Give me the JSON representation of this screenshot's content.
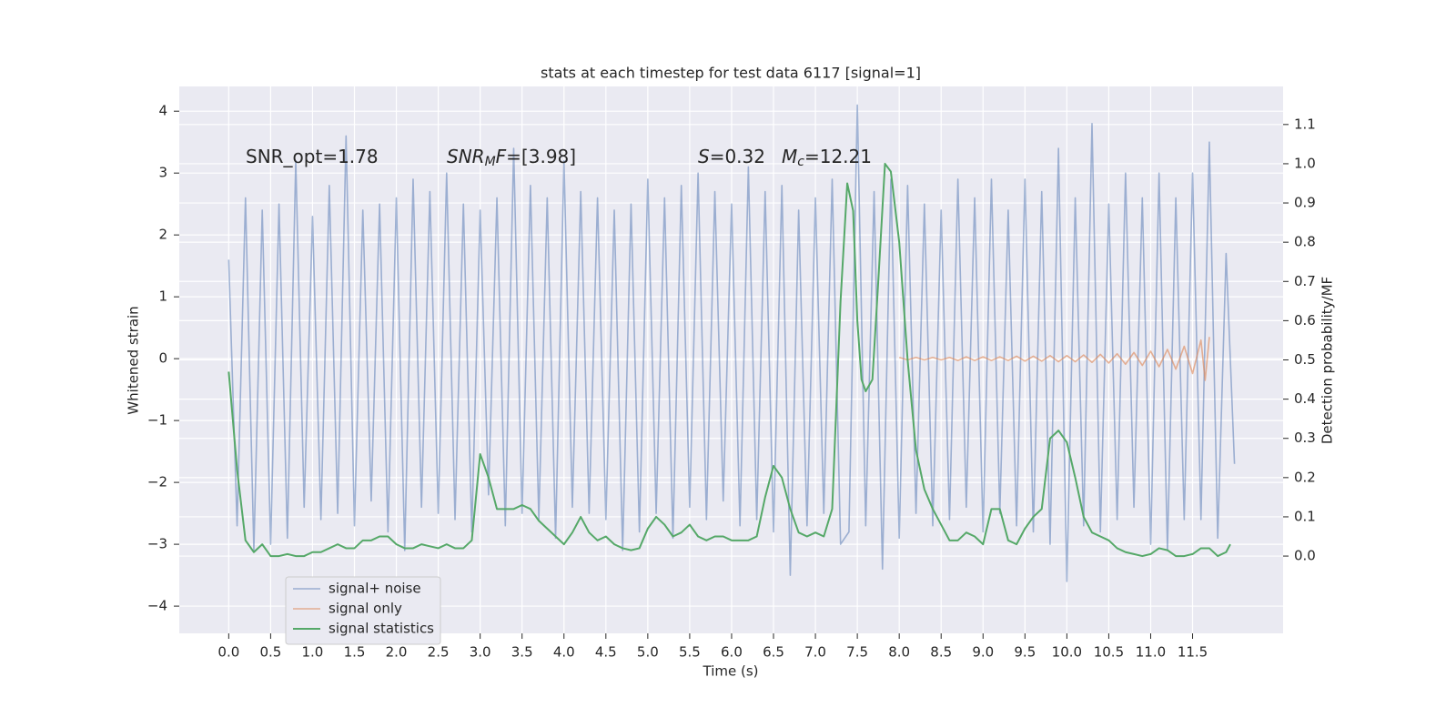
{
  "chart_data": {
    "type": "line",
    "title": "stats at each timestep for test data 6117 [signal=1]",
    "xlabel": "Time (s)",
    "ylabel": "Whitened strain",
    "y2label": "Detection probability/MF",
    "xlim": [
      -0.59,
      12.58
    ],
    "ylim": [
      -4.44,
      4.4
    ],
    "y2lim": [
      -0.197,
      1.197
    ],
    "xticks": [
      {
        "value": 0,
        "label": "0.0"
      },
      {
        "value": 0.5,
        "label": "0.5"
      },
      {
        "value": 1,
        "label": "1.0"
      },
      {
        "value": 1.5,
        "label": "1.5"
      },
      {
        "value": 2,
        "label": "2.0"
      },
      {
        "value": 2.5,
        "label": "2.5"
      },
      {
        "value": 3,
        "label": "3.0"
      },
      {
        "value": 3.5,
        "label": "3.5"
      },
      {
        "value": 4,
        "label": "4.0"
      },
      {
        "value": 4.5,
        "label": "4.5"
      },
      {
        "value": 5,
        "label": "5.0"
      },
      {
        "value": 5.5,
        "label": "5.5"
      },
      {
        "value": 6,
        "label": "6.0"
      },
      {
        "value": 6.5,
        "label": "6.5"
      },
      {
        "value": 7,
        "label": "7.0"
      },
      {
        "value": 7.5,
        "label": "7.5"
      },
      {
        "value": 8,
        "label": "8.0"
      },
      {
        "value": 8.5,
        "label": "8.5"
      },
      {
        "value": 9,
        "label": "9.0"
      },
      {
        "value": 9.5,
        "label": "9.5"
      },
      {
        "value": 10,
        "label": "10.0"
      },
      {
        "value": 10.5,
        "label": "10.5"
      },
      {
        "value": 11,
        "label": "11.0"
      },
      {
        "value": 11.5,
        "label": "11.5"
      }
    ],
    "yticks": [
      {
        "value": -4,
        "label": "−4"
      },
      {
        "value": -3,
        "label": "−3"
      },
      {
        "value": -2,
        "label": "−2"
      },
      {
        "value": -1,
        "label": "−1"
      },
      0,
      1,
      2,
      3,
      4
    ],
    "y2ticks": [
      {
        "value": 0,
        "label": "0.0"
      },
      {
        "value": 0.1,
        "label": "0.1"
      },
      {
        "value": 0.2,
        "label": "0.2"
      },
      {
        "value": 0.3,
        "label": "0.3"
      },
      {
        "value": 0.4,
        "label": "0.4"
      },
      {
        "value": 0.5,
        "label": "0.5"
      },
      {
        "value": 0.6,
        "label": "0.6"
      },
      {
        "value": 0.7,
        "label": "0.7"
      },
      {
        "value": 0.8,
        "label": "0.8"
      },
      {
        "value": 0.9,
        "label": "0.9"
      },
      {
        "value": 1.0,
        "label": "1.0"
      },
      {
        "value": 1.1,
        "label": "1.1"
      }
    ],
    "grid": true,
    "legend": "lower left",
    "series": [
      {
        "name": "signal+ noise",
        "color": "#4c72b0",
        "x": [
          0,
          0.1,
          0.2,
          0.3,
          0.4,
          0.5,
          0.6,
          0.7,
          0.8,
          0.9,
          1,
          1.1,
          1.2,
          1.3,
          1.4,
          1.5,
          1.6,
          1.7,
          1.8,
          1.9,
          2,
          2.1,
          2.2,
          2.3,
          2.4,
          2.5,
          2.6,
          2.7,
          2.8,
          2.9,
          3,
          3.1,
          3.2,
          3.3,
          3.4,
          3.5,
          3.6,
          3.7,
          3.8,
          3.9,
          4,
          4.1,
          4.2,
          4.3,
          4.4,
          4.5,
          4.6,
          4.7,
          4.8,
          4.9,
          5,
          5.1,
          5.2,
          5.3,
          5.4,
          5.5,
          5.6,
          5.7,
          5.8,
          5.9,
          6,
          6.1,
          6.2,
          6.3,
          6.4,
          6.5,
          6.6,
          6.7,
          6.8,
          6.9,
          7,
          7.1,
          7.2,
          7.3,
          7.4,
          7.5,
          7.6,
          7.7,
          7.8,
          7.9,
          8,
          8.1,
          8.2,
          8.3,
          8.4,
          8.5,
          8.6,
          8.7,
          8.8,
          8.9,
          9,
          9.1,
          9.2,
          9.3,
          9.4,
          9.5,
          9.6,
          9.7,
          9.8,
          9.9,
          10,
          10.1,
          10.2,
          10.3,
          10.4,
          10.5,
          10.6,
          10.7,
          10.8,
          10.9,
          11,
          11.1,
          11.2,
          11.3,
          11.4,
          11.5,
          11.6,
          11.7,
          11.8,
          11.9,
          12
        ],
        "values": [
          1.6,
          -2.7,
          2.6,
          -3.1,
          2.4,
          -3.0,
          2.5,
          -2.9,
          3.2,
          -2.4,
          2.3,
          -2.6,
          2.8,
          -2.5,
          3.6,
          -2.7,
          2.4,
          -2.3,
          2.5,
          -2.8,
          2.6,
          -3.1,
          2.9,
          -2.4,
          2.7,
          -2.5,
          3.0,
          -2.6,
          2.5,
          -2.8,
          2.4,
          -2.2,
          2.6,
          -2.7,
          3.4,
          -2.5,
          2.8,
          -2.6,
          2.6,
          -2.9,
          3.2,
          -2.4,
          2.7,
          -2.5,
          2.6,
          -2.6,
          2.4,
          -3.1,
          2.5,
          -2.8,
          2.9,
          -2.5,
          2.6,
          -2.9,
          2.8,
          -2.4,
          3.0,
          -2.6,
          2.7,
          -2.3,
          2.5,
          -2.7,
          3.1,
          -2.6,
          2.7,
          -2.8,
          2.8,
          -3.5,
          2.4,
          -2.7,
          2.6,
          -2.5,
          2.9,
          -3.0,
          -2.8,
          4.1,
          -2.7,
          2.7,
          -3.4,
          2.9,
          -2.9,
          2.8,
          -2.5,
          2.5,
          -2.7,
          2.4,
          -2.6,
          2.9,
          -2.4,
          2.6,
          -2.8,
          2.9,
          -2.5,
          2.4,
          -2.7,
          2.9,
          -2.8,
          2.7,
          -3.0,
          3.4,
          -3.6,
          2.6,
          -2.7,
          3.8,
          -2.8,
          2.5,
          -2.6,
          3.0,
          -2.4,
          2.6,
          -3.0,
          3.0,
          -3.1,
          2.6,
          -2.6,
          3.0,
          -2.6,
          3.5,
          -2.9,
          1.7,
          -1.7
        ]
      },
      {
        "name": "signal only",
        "color": "#dd8452",
        "x": [
          8,
          8.1,
          8.2,
          8.3,
          8.4,
          8.5,
          8.6,
          8.7,
          8.8,
          8.9,
          9,
          9.1,
          9.2,
          9.3,
          9.4,
          9.5,
          9.6,
          9.7,
          9.8,
          9.9,
          10,
          10.1,
          10.2,
          10.3,
          10.4,
          10.5,
          10.6,
          10.7,
          10.8,
          10.9,
          11,
          11.1,
          11.2,
          11.3,
          11.4,
          11.5,
          11.6,
          11.65,
          11.7
        ],
        "values": [
          0.02,
          -0.02,
          0.02,
          -0.02,
          0.02,
          -0.02,
          0.02,
          -0.03,
          0.03,
          -0.03,
          0.03,
          -0.03,
          0.03,
          -0.03,
          0.04,
          -0.04,
          0.04,
          -0.04,
          0.05,
          -0.05,
          0.05,
          -0.05,
          0.06,
          -0.06,
          0.07,
          -0.07,
          0.08,
          -0.09,
          0.1,
          -0.11,
          0.12,
          -0.13,
          0.15,
          -0.17,
          0.2,
          -0.24,
          0.3,
          -0.35,
          0.35
        ]
      },
      {
        "name": "signal statistics",
        "color": "#55a868",
        "axis": "y2",
        "x": [
          0,
          0.1,
          0.2,
          0.3,
          0.4,
          0.5,
          0.6,
          0.7,
          0.8,
          0.9,
          1,
          1.1,
          1.2,
          1.3,
          1.4,
          1.5,
          1.6,
          1.7,
          1.8,
          1.9,
          2,
          2.1,
          2.2,
          2.3,
          2.4,
          2.5,
          2.6,
          2.7,
          2.8,
          2.9,
          3,
          3.1,
          3.2,
          3.3,
          3.4,
          3.5,
          3.6,
          3.7,
          3.8,
          3.9,
          4,
          4.1,
          4.2,
          4.3,
          4.4,
          4.5,
          4.6,
          4.7,
          4.8,
          4.9,
          5,
          5.1,
          5.2,
          5.3,
          5.4,
          5.5,
          5.6,
          5.7,
          5.8,
          5.9,
          6,
          6.1,
          6.2,
          6.3,
          6.4,
          6.5,
          6.6,
          6.7,
          6.8,
          6.9,
          7,
          7.1,
          7.2,
          7.3,
          7.38,
          7.45,
          7.5,
          7.55,
          7.6,
          7.68,
          7.75,
          7.83,
          7.9,
          8,
          8.1,
          8.2,
          8.3,
          8.4,
          8.5,
          8.6,
          8.7,
          8.8,
          8.9,
          9,
          9.1,
          9.2,
          9.3,
          9.4,
          9.5,
          9.6,
          9.7,
          9.8,
          9.9,
          10,
          10.1,
          10.2,
          10.3,
          10.4,
          10.5,
          10.6,
          10.7,
          10.8,
          10.9,
          11,
          11.1,
          11.2,
          11.3,
          11.4,
          11.5,
          11.6,
          11.7,
          11.8,
          11.9,
          11.95
        ],
        "values": [
          0.47,
          0.22,
          0.04,
          0.01,
          0.03,
          0.0,
          0.0,
          0.005,
          0.0,
          0.0,
          0.01,
          0.01,
          0.02,
          0.03,
          0.02,
          0.02,
          0.04,
          0.04,
          0.05,
          0.05,
          0.03,
          0.02,
          0.02,
          0.03,
          0.025,
          0.02,
          0.03,
          0.02,
          0.02,
          0.04,
          0.26,
          0.2,
          0.12,
          0.12,
          0.12,
          0.13,
          0.12,
          0.09,
          0.07,
          0.05,
          0.03,
          0.06,
          0.1,
          0.06,
          0.04,
          0.05,
          0.03,
          0.02,
          0.015,
          0.02,
          0.07,
          0.1,
          0.08,
          0.05,
          0.06,
          0.08,
          0.05,
          0.04,
          0.05,
          0.05,
          0.04,
          0.04,
          0.04,
          0.05,
          0.15,
          0.23,
          0.2,
          0.12,
          0.06,
          0.05,
          0.06,
          0.05,
          0.12,
          0.65,
          0.95,
          0.88,
          0.6,
          0.45,
          0.42,
          0.45,
          0.7,
          1.0,
          0.98,
          0.8,
          0.5,
          0.27,
          0.17,
          0.12,
          0.08,
          0.04,
          0.04,
          0.06,
          0.05,
          0.03,
          0.12,
          0.12,
          0.04,
          0.03,
          0.07,
          0.1,
          0.12,
          0.3,
          0.32,
          0.29,
          0.2,
          0.1,
          0.06,
          0.05,
          0.04,
          0.02,
          0.01,
          0.005,
          0.0,
          0.005,
          0.02,
          0.015,
          0.0,
          0.0,
          0.005,
          0.02,
          0.02,
          0.0,
          0.01,
          0.03
        ]
      }
    ],
    "annotations": [
      {
        "parts": [
          {
            "text": "SNR_opt=1.78",
            "italic": false,
            "sub": false
          }
        ]
      },
      {
        "parts": [
          {
            "text": "SNR",
            "italic": true,
            "sub": false
          },
          {
            "text": "M",
            "italic": true,
            "sub": true
          },
          {
            "text": "F",
            "italic": true,
            "sub": false
          },
          {
            "text": "=[3.98]",
            "italic": false,
            "sub": false
          }
        ]
      },
      {
        "parts": [
          {
            "text": "S",
            "italic": true,
            "sub": false
          },
          {
            "text": "=0.32",
            "italic": false,
            "sub": false
          }
        ]
      },
      {
        "parts": [
          {
            "text": "M",
            "italic": true,
            "sub": false
          },
          {
            "text": "c",
            "italic": true,
            "sub": true
          },
          {
            "text": "=12.21",
            "italic": false,
            "sub": false
          }
        ]
      }
    ]
  }
}
